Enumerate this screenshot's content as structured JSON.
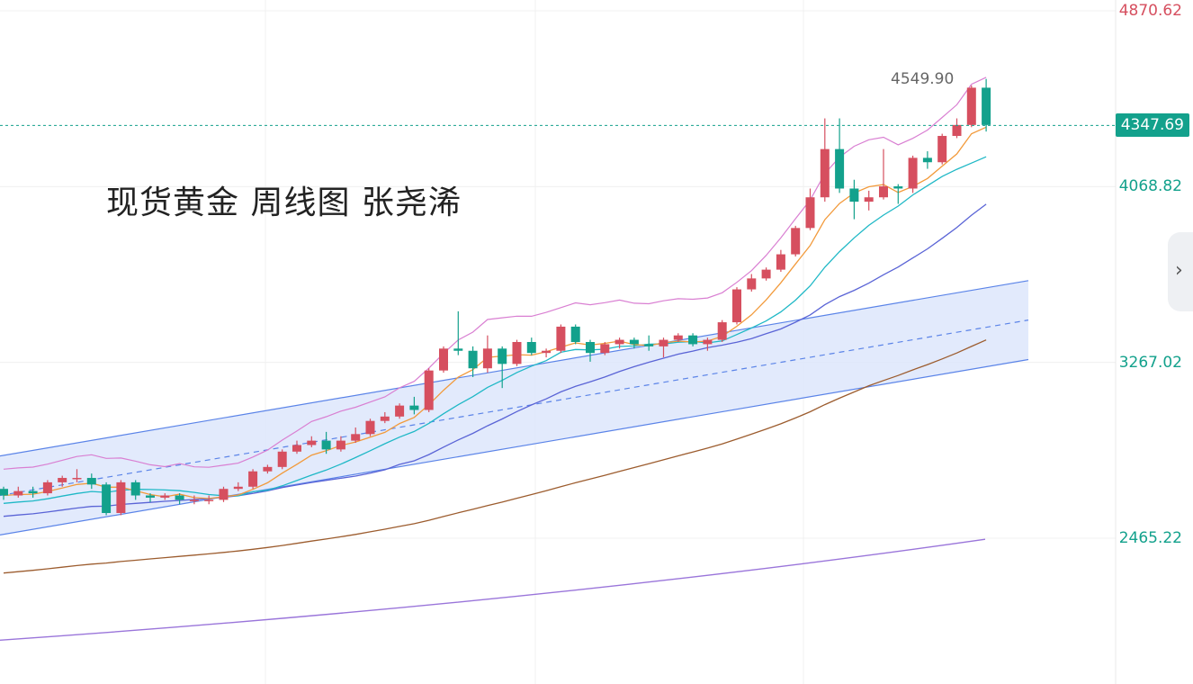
{
  "title": "现货黄金 周线图 张尧浠",
  "side_tab": {
    "glyph": "›"
  },
  "colors": {
    "up": "#d64f5f",
    "down": "#13a18c",
    "grid": "#f0f0f0"
  },
  "chart_data": {
    "type": "candlestick",
    "ylim": [
      1800,
      4920
    ],
    "y_ticks": [
      {
        "label": "4870.62",
        "value": 4870.62,
        "color": "#d64f5f"
      },
      {
        "label": "4068.82",
        "value": 4068.82,
        "color": "#13a18c"
      },
      {
        "label": "3267.02",
        "value": 3267.02,
        "color": "#13a18c"
      },
      {
        "label": "2465.22",
        "value": 2465.22,
        "color": "#13a18c"
      }
    ],
    "last_price": {
      "label": "4347.69",
      "value": 4347.69
    },
    "high_label": {
      "label": "4549.90",
      "value": 4549.9
    },
    "candles": [
      [
        2690,
        2660,
        2700,
        2640
      ],
      [
        2660,
        2680,
        2700,
        2650
      ],
      [
        2680,
        2670,
        2700,
        2650
      ],
      [
        2670,
        2720,
        2730,
        2660
      ],
      [
        2720,
        2740,
        2750,
        2700
      ],
      [
        2740,
        2740,
        2780,
        2720
      ],
      [
        2740,
        2710,
        2760,
        2690
      ],
      [
        2710,
        2580,
        2720,
        2570
      ],
      [
        2580,
        2720,
        2730,
        2570
      ],
      [
        2720,
        2660,
        2730,
        2640
      ],
      [
        2660,
        2650,
        2670,
        2630
      ],
      [
        2650,
        2660,
        2670,
        2640
      ],
      [
        2660,
        2640,
        2670,
        2620
      ],
      [
        2640,
        2640,
        2660,
        2620
      ],
      [
        2640,
        2640,
        2660,
        2620
      ],
      [
        2640,
        2690,
        2700,
        2630
      ],
      [
        2690,
        2700,
        2720,
        2680
      ],
      [
        2700,
        2770,
        2780,
        2690
      ],
      [
        2770,
        2790,
        2800,
        2760
      ],
      [
        2790,
        2860,
        2870,
        2780
      ],
      [
        2860,
        2890,
        2910,
        2850
      ],
      [
        2890,
        2910,
        2930,
        2880
      ],
      [
        2910,
        2870,
        2950,
        2850
      ],
      [
        2870,
        2910,
        2930,
        2860
      ],
      [
        2910,
        2940,
        2970,
        2900
      ],
      [
        2940,
        3000,
        3010,
        2930
      ],
      [
        3000,
        3020,
        3040,
        2990
      ],
      [
        3020,
        3070,
        3080,
        3010
      ],
      [
        3070,
        3050,
        3110,
        3030
      ],
      [
        3050,
        3230,
        3240,
        3040
      ],
      [
        3230,
        3330,
        3340,
        3220
      ],
      [
        3330,
        3320,
        3500,
        3300
      ],
      [
        3320,
        3240,
        3340,
        3200
      ],
      [
        3240,
        3330,
        3390,
        3220
      ],
      [
        3330,
        3260,
        3340,
        3150
      ],
      [
        3260,
        3360,
        3370,
        3250
      ],
      [
        3360,
        3310,
        3380,
        3300
      ],
      [
        3310,
        3320,
        3330,
        3290
      ],
      [
        3320,
        3430,
        3440,
        3310
      ],
      [
        3430,
        3360,
        3440,
        3350
      ],
      [
        3360,
        3310,
        3370,
        3270
      ],
      [
        3310,
        3350,
        3360,
        3300
      ],
      [
        3350,
        3370,
        3380,
        3330
      ],
      [
        3370,
        3350,
        3380,
        3330
      ],
      [
        3350,
        3340,
        3390,
        3320
      ],
      [
        3340,
        3370,
        3380,
        3290
      ],
      [
        3370,
        3390,
        3400,
        3360
      ],
      [
        3390,
        3350,
        3400,
        3340
      ],
      [
        3350,
        3370,
        3380,
        3320
      ],
      [
        3370,
        3450,
        3460,
        3360
      ],
      [
        3450,
        3600,
        3610,
        3440
      ],
      [
        3600,
        3650,
        3670,
        3590
      ],
      [
        3650,
        3690,
        3700,
        3640
      ],
      [
        3690,
        3760,
        3780,
        3680
      ],
      [
        3760,
        3880,
        3890,
        3750
      ],
      [
        3880,
        4020,
        4060,
        3870
      ],
      [
        4020,
        4240,
        4380,
        4000
      ],
      [
        4240,
        4060,
        4380,
        4040
      ],
      [
        4060,
        4000,
        4100,
        3920
      ],
      [
        4000,
        4020,
        4050,
        3960
      ],
      [
        4020,
        4070,
        4240,
        4010
      ],
      [
        4070,
        4060,
        4080,
        3990
      ],
      [
        4060,
        4200,
        4210,
        4040
      ],
      [
        4200,
        4180,
        4230,
        4150
      ],
      [
        4180,
        4300,
        4310,
        4170
      ],
      [
        4300,
        4350,
        4380,
        4290
      ],
      [
        4350,
        4520,
        4530,
        4340
      ],
      [
        4520,
        4350,
        4560,
        4320
      ]
    ],
    "channel": {
      "upper": [
        [
          0,
          2840
        ],
        [
          1143,
          3640
        ]
      ],
      "lower": [
        [
          0,
          2480
        ],
        [
          1143,
          3280
        ]
      ],
      "mid": [
        [
          0,
          2660
        ],
        [
          1143,
          3460
        ]
      ]
    }
  }
}
